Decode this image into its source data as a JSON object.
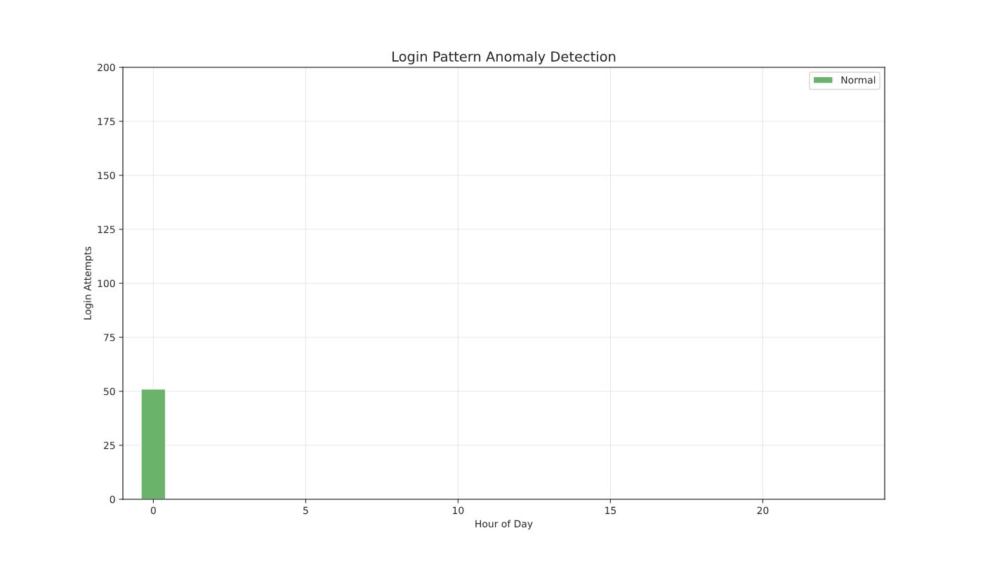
{
  "chart_data": {
    "type": "bar",
    "title": "Login Pattern Anomaly Detection",
    "xlabel": "Hour of Day",
    "ylabel": "Login Attempts",
    "x": [
      0
    ],
    "series": [
      {
        "name": "Normal",
        "color": "#6ab36a",
        "values": [
          51
        ]
      }
    ],
    "xlim": [
      -1,
      24
    ],
    "xticks": [
      0,
      5,
      10,
      15,
      20
    ],
    "ylim": [
      0,
      200
    ],
    "yticks": [
      0,
      25,
      50,
      75,
      100,
      125,
      150,
      175,
      200
    ],
    "grid": true,
    "legend": "top right"
  }
}
